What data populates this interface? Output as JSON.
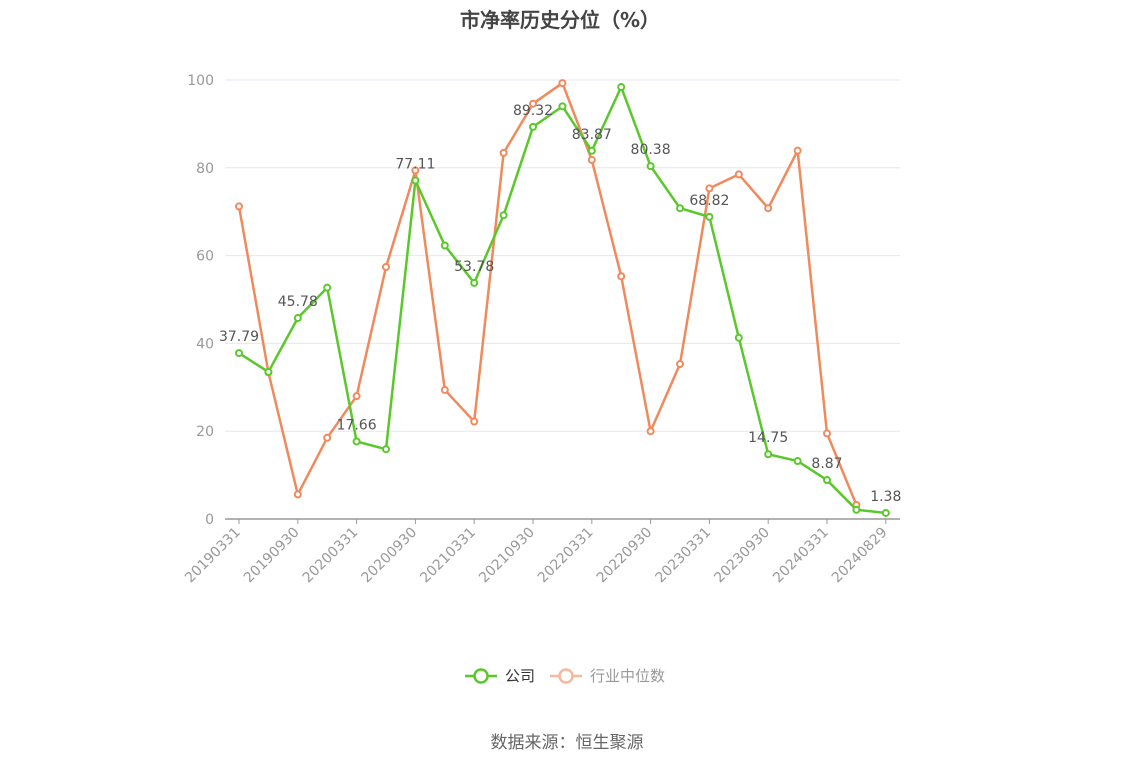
{
  "title": "市净率历史分位（%）",
  "source": "数据来源：恒生聚源",
  "colors": {
    "company": "#5ac82b",
    "industry": "#f08a5d",
    "grid": "#e6e6f0",
    "axis": "#999999"
  },
  "chart_data": {
    "type": "line",
    "title": "市净率历史分位（%）",
    "xlabel": "",
    "ylabel": "",
    "ylim": [
      0,
      100
    ],
    "yticks": [
      0,
      20,
      40,
      60,
      80,
      100
    ],
    "grid": true,
    "legend_position": "bottom",
    "x": [
      "20190331",
      "20190630",
      "20190930",
      "20191231",
      "20200331",
      "20200630",
      "20200930",
      "20201231",
      "20210331",
      "20210630",
      "20210930",
      "20211231",
      "20220331",
      "20220630",
      "20220930",
      "20221231",
      "20230331",
      "20230630",
      "20230930",
      "20231231",
      "20240331",
      "20240630",
      "20240829"
    ],
    "x_tick_labels": [
      "20190331",
      "20190930",
      "20200331",
      "20200930",
      "20210331",
      "20210930",
      "20220331",
      "20220930",
      "20230331",
      "20230930",
      "20240331",
      "20240829"
    ],
    "series": [
      {
        "name": "公司",
        "values": [
          37.79,
          33.5,
          45.78,
          52.7,
          17.66,
          15.9,
          77.11,
          62.3,
          53.78,
          69.2,
          89.32,
          94.0,
          83.87,
          98.4,
          80.38,
          70.8,
          68.82,
          41.3,
          14.75,
          13.2,
          8.87,
          2.1,
          1.38
        ],
        "labels": {
          "0": "37.79",
          "2": "45.78",
          "4": "17.66",
          "6": "77.11",
          "8": "53.78",
          "10": "89.32",
          "12": "83.87",
          "14": "80.38",
          "16": "68.82",
          "18": "14.75",
          "20": "8.87",
          "22": "1.38"
        }
      },
      {
        "name": "行业中位数",
        "values": [
          71.2,
          33.4,
          5.6,
          18.5,
          28.0,
          57.4,
          79.4,
          29.4,
          22.2,
          83.4,
          94.6,
          99.3,
          81.8,
          55.3,
          20.0,
          35.3,
          75.3,
          78.5,
          70.8,
          83.9,
          19.5,
          3.2,
          null
        ]
      }
    ]
  }
}
